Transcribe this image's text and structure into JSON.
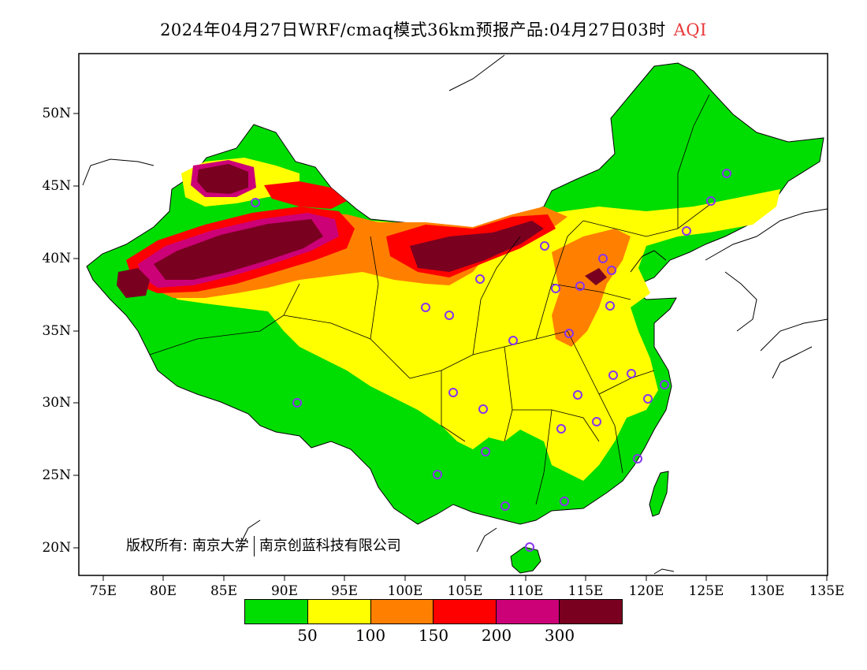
{
  "title": {
    "text": "2024年04月27日WRF/cmaq模式36km预报产品:04月27日03时",
    "variable": "AQI",
    "variable_color": "#e8393a"
  },
  "axes": {
    "lat_labels": [
      "50N",
      "45N",
      "40N",
      "35N",
      "30N",
      "25N",
      "20N"
    ],
    "lon_labels": [
      "75E",
      "80E",
      "85E",
      "90E",
      "95E",
      "100E",
      "105E",
      "110E",
      "115E",
      "120E",
      "125E",
      "130E",
      "135E"
    ]
  },
  "legend": {
    "colors": [
      "#00dd00",
      "#ffff00",
      "#ff8000",
      "#ff0000",
      "#cc0077",
      "#7a0020"
    ],
    "ticks": [
      "50",
      "100",
      "150",
      "200",
      "300"
    ]
  },
  "copyright": {
    "prefix": "版权所有:",
    "org1": "南京大学",
    "org2": "南京创蓝科技有限公司"
  },
  "colors": {
    "ocean": "#ffffff",
    "border": "#000000",
    "station": "#8833ee"
  }
}
